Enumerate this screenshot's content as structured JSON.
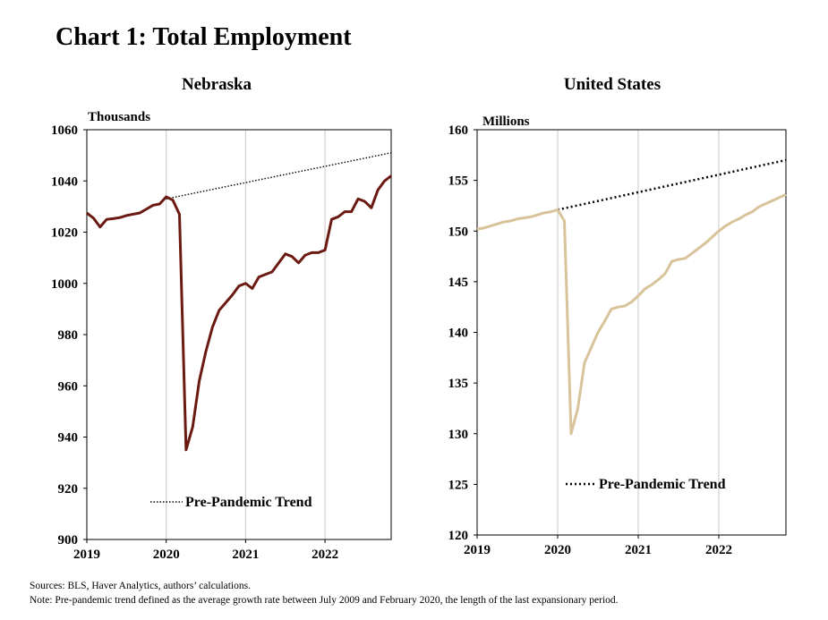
{
  "title": "Chart 1: Total Employment",
  "sources": "Sources: BLS,  Haver Analytics, authors’ calculations.",
  "note": "Note: Pre-pandemic  trend defined as the average growth rate between July 2009  and February 2020,  the length of the last expansionary period.",
  "colors": {
    "nebraska": "#6b1a12",
    "us": "#d8c39a",
    "trend": "#000000",
    "gridline": "#c8c8c8"
  },
  "chart_data": [
    {
      "type": "line",
      "title": "Nebraska",
      "ylabel": "Thousands",
      "ylim": [
        900,
        1060
      ],
      "yticks": [
        "1060",
        "1040",
        "1020",
        "1000",
        "980",
        "960",
        "940",
        "920",
        "900"
      ],
      "xticks": [
        "2019",
        "2020",
        "2021",
        "2022"
      ],
      "xlim": [
        0,
        46
      ],
      "legend": "Pre-Pandemic Trend",
      "series": [
        {
          "values": [
            1027.5,
            1025.5,
            1022,
            1025,
            1025.3,
            1025.7,
            1026.5,
            1027,
            1027.5,
            1029,
            1030.5,
            1031,
            1033.8,
            1032.5,
            1027,
            935,
            944,
            962,
            973.5,
            983,
            989.5,
            992.5,
            995.5,
            999,
            1000,
            998,
            1002.5,
            1003.5,
            1004.5,
            1008,
            1011.5,
            1010.5,
            1008,
            1011,
            1012,
            1012,
            1013,
            1025,
            1026,
            1028,
            1028,
            1033,
            1032,
            1029.5,
            1036.5,
            1040,
            1042
          ]
        },
        {
          "name": "Pre-Pandemic Trend",
          "x": [
            12,
            46
          ],
          "values": [
            1033,
            1051
          ]
        }
      ]
    },
    {
      "type": "line",
      "title": "United States",
      "ylabel": "Millions",
      "ylim": [
        120,
        160
      ],
      "yticks": [
        "160",
        "155",
        "150",
        "145",
        "140",
        "135",
        "130",
        "125",
        "120"
      ],
      "xticks": [
        "2019",
        "2020",
        "2021",
        "2022"
      ],
      "xlim": [
        0,
        46
      ],
      "legend": "Pre-Pandemic Trend",
      "series": [
        {
          "values": [
            150.2,
            150.3,
            150.5,
            150.7,
            150.9,
            151,
            151.2,
            151.3,
            151.4,
            151.6,
            151.8,
            151.9,
            152.1,
            151,
            130,
            132.5,
            137,
            138.5,
            140,
            141.1,
            142.3,
            142.5,
            142.6,
            143,
            143.6,
            144.3,
            144.7,
            145.2,
            145.8,
            147,
            147.2,
            147.3,
            147.8,
            148.3,
            148.8,
            149.4,
            150,
            150.5,
            150.9,
            151.2,
            151.6,
            151.9,
            152.4,
            152.7,
            153,
            153.3,
            153.6
          ]
        },
        {
          "name": "Pre-Pandemic Trend",
          "x": [
            12,
            46
          ],
          "values": [
            152.1,
            157
          ]
        }
      ]
    }
  ]
}
